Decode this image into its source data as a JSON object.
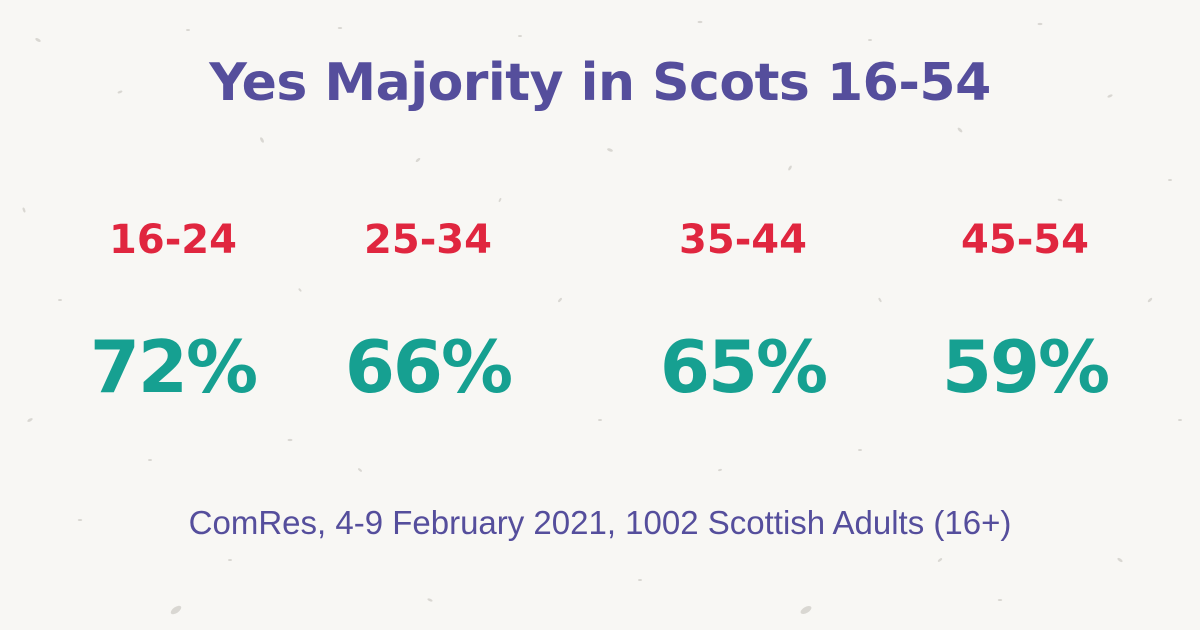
{
  "title": "Yes Majority in Scots 16-54",
  "stats": [
    {
      "age_group": "16-24",
      "percent": "72%"
    },
    {
      "age_group": "25-34",
      "percent": "66%"
    },
    {
      "age_group": "35-44",
      "percent": "65%"
    },
    {
      "age_group": "45-54",
      "percent": "59%"
    }
  ],
  "source": "ComRes, 4-9 February 2021, 1002 Scottish Adults (16+)",
  "colors": {
    "background": "#f8f7f4",
    "title": "#554e9c",
    "age_group": "#e0263f",
    "percent": "#16a091",
    "source": "#554e9c",
    "speckle": "#d6d4cf"
  }
}
